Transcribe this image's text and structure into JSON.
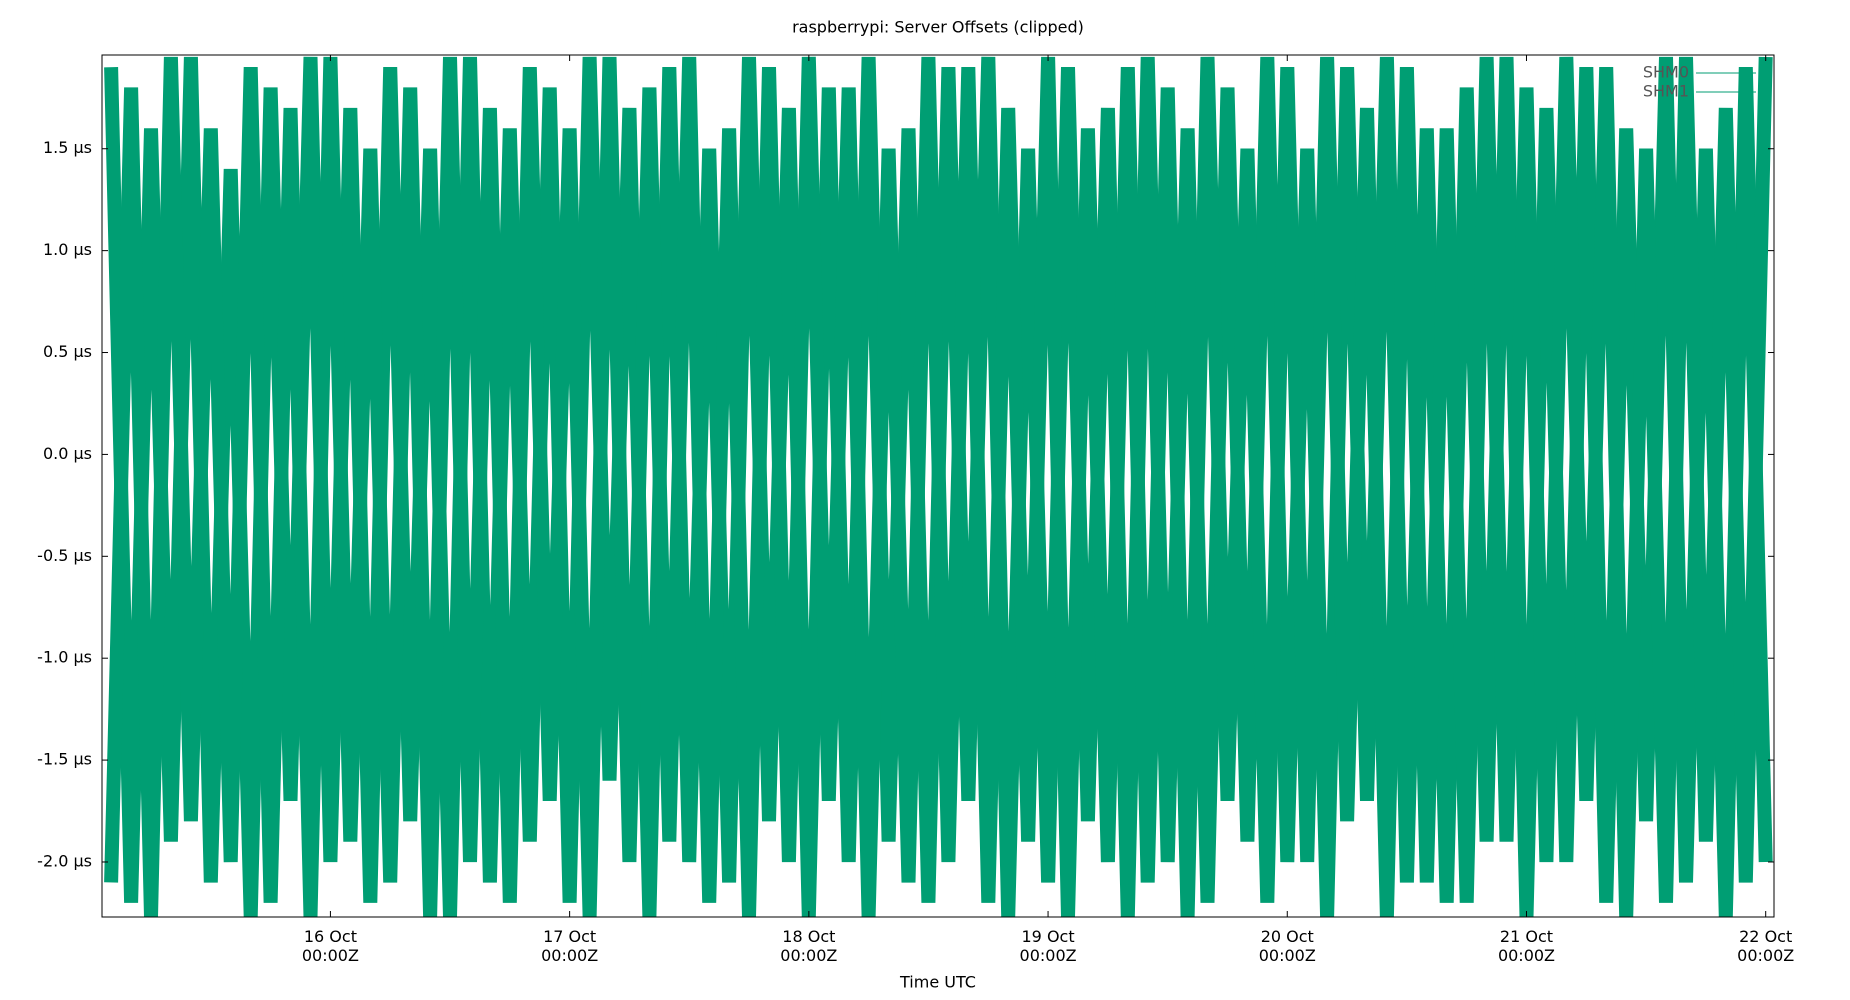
{
  "chart_data": {
    "type": "line",
    "title": "raspberrypi: Server Offsets (clipped)",
    "x_label": "Time UTC",
    "x": [
      "15 Oct 02:00Z",
      "15 Oct 04:00Z",
      "15 Oct 06:00Z",
      "15 Oct 08:00Z",
      "15 Oct 10:00Z",
      "15 Oct 12:00Z",
      "15 Oct 14:00Z",
      "15 Oct 16:00Z",
      "15 Oct 18:00Z",
      "15 Oct 20:00Z",
      "15 Oct 22:00Z",
      "16 Oct 00:00Z",
      "16 Oct 02:00Z",
      "16 Oct 04:00Z",
      "16 Oct 06:00Z",
      "16 Oct 08:00Z",
      "16 Oct 10:00Z",
      "16 Oct 12:00Z",
      "16 Oct 14:00Z",
      "16 Oct 16:00Z",
      "16 Oct 18:00Z",
      "16 Oct 20:00Z",
      "16 Oct 22:00Z",
      "17 Oct 00:00Z",
      "17 Oct 02:00Z",
      "17 Oct 04:00Z",
      "17 Oct 06:00Z",
      "17 Oct 08:00Z",
      "17 Oct 10:00Z",
      "17 Oct 12:00Z",
      "17 Oct 14:00Z",
      "17 Oct 16:00Z",
      "17 Oct 18:00Z",
      "17 Oct 20:00Z",
      "17 Oct 22:00Z",
      "18 Oct 00:00Z",
      "18 Oct 02:00Z",
      "18 Oct 04:00Z",
      "18 Oct 06:00Z",
      "18 Oct 08:00Z",
      "18 Oct 10:00Z",
      "18 Oct 12:00Z",
      "18 Oct 14:00Z",
      "18 Oct 16:00Z",
      "18 Oct 18:00Z",
      "18 Oct 20:00Z",
      "18 Oct 22:00Z",
      "19 Oct 00:00Z",
      "19 Oct 02:00Z",
      "19 Oct 04:00Z",
      "19 Oct 06:00Z",
      "19 Oct 08:00Z",
      "19 Oct 10:00Z",
      "19 Oct 12:00Z",
      "19 Oct 14:00Z",
      "19 Oct 16:00Z",
      "19 Oct 18:00Z",
      "19 Oct 20:00Z",
      "19 Oct 22:00Z",
      "20 Oct 00:00Z",
      "20 Oct 02:00Z",
      "20 Oct 04:00Z",
      "20 Oct 06:00Z",
      "20 Oct 08:00Z",
      "20 Oct 10:00Z",
      "20 Oct 12:00Z",
      "20 Oct 14:00Z",
      "20 Oct 16:00Z",
      "20 Oct 18:00Z",
      "20 Oct 20:00Z",
      "20 Oct 22:00Z",
      "21 Oct 00:00Z",
      "21 Oct 02:00Z",
      "21 Oct 04:00Z",
      "21 Oct 06:00Z",
      "21 Oct 08:00Z",
      "21 Oct 10:00Z",
      "21 Oct 12:00Z",
      "21 Oct 14:00Z",
      "21 Oct 16:00Z",
      "21 Oct 18:00Z",
      "21 Oct 20:00Z",
      "21 Oct 22:00Z",
      "22 Oct 00:00Z"
    ],
    "series": [
      {
        "name": "SHM0",
        "color": "#009e73",
        "values": [
          1.9,
          -2.2,
          1.6,
          -1.9,
          1.95,
          -2.1,
          1.4,
          -2.27,
          1.8,
          -1.7,
          1.95,
          -2.0,
          1.7,
          -2.2,
          1.9,
          -1.8,
          1.5,
          -2.27,
          1.95,
          -2.1,
          1.6,
          -1.9,
          1.8,
          -2.2,
          1.95,
          -1.6,
          1.7,
          -2.27,
          1.9,
          -2.0,
          1.5,
          -2.1,
          1.95,
          -1.8,
          1.7,
          -2.27,
          1.8,
          -2.0,
          1.95,
          -1.9,
          1.6,
          -2.2,
          1.9,
          -1.7,
          1.95,
          -2.27,
          1.5,
          -2.1,
          1.9,
          -1.8,
          1.7,
          -2.27,
          1.95,
          -2.0,
          1.6,
          -2.2,
          1.8,
          -1.9,
          1.95,
          -2.0,
          1.5,
          -2.27,
          1.9,
          -1.7,
          1.95,
          -2.1,
          1.6,
          -2.2,
          1.8,
          -1.9,
          1.95,
          -2.27,
          1.7,
          -2.0,
          1.9,
          -2.2,
          1.6,
          -1.8,
          1.95,
          -2.1,
          1.5,
          -2.27,
          1.9,
          -2.0
        ]
      },
      {
        "name": "SHM1",
        "color": "#009e73",
        "values": [
          -2.1,
          1.8,
          -2.27,
          1.95,
          -1.8,
          1.6,
          -2.0,
          1.9,
          -2.2,
          1.7,
          -2.27,
          1.95,
          -1.9,
          1.5,
          -2.1,
          1.8,
          -2.27,
          1.95,
          -2.0,
          1.7,
          -2.2,
          1.9,
          -1.7,
          1.6,
          -2.27,
          1.95,
          -2.0,
          1.8,
          -1.9,
          1.95,
          -2.2,
          1.6,
          -2.27,
          1.9,
          -2.0,
          1.95,
          -1.7,
          1.8,
          -2.27,
          1.5,
          -2.1,
          1.95,
          -2.0,
          1.9,
          -2.2,
          1.7,
          -1.9,
          1.95,
          -2.27,
          1.6,
          -2.0,
          1.9,
          -2.1,
          1.8,
          -2.27,
          1.95,
          -1.7,
          1.5,
          -2.2,
          1.9,
          -2.0,
          1.95,
          -1.8,
          1.7,
          -2.27,
          1.9,
          -2.1,
          1.6,
          -2.2,
          1.95,
          -1.9,
          1.8,
          -2.0,
          1.95,
          -1.7,
          1.9,
          -2.27,
          1.5,
          -2.2,
          1.95,
          -1.9,
          1.7,
          -2.1,
          1.95
        ]
      }
    ],
    "xlim": [
      "15 Oct 01:05Z",
      "22 Oct 00:50Z"
    ],
    "xticks": [
      {
        "value": "16 Oct 00:00Z",
        "label": "16 Oct\n00:00Z"
      },
      {
        "value": "17 Oct 00:00Z",
        "label": "17 Oct\n00:00Z"
      },
      {
        "value": "18 Oct 00:00Z",
        "label": "18 Oct\n00:00Z"
      },
      {
        "value": "19 Oct 00:00Z",
        "label": "19 Oct\n00:00Z"
      },
      {
        "value": "20 Oct 00:00Z",
        "label": "20 Oct\n00:00Z"
      },
      {
        "value": "21 Oct 00:00Z",
        "label": "21 Oct\n00:00Z"
      },
      {
        "value": "22 Oct 00:00Z",
        "label": "22 Oct\n00:00Z"
      }
    ],
    "ylim": [
      -2.27,
      1.96
    ],
    "yticks": [
      {
        "value": -2.0,
        "label": "-2.0 μs"
      },
      {
        "value": -1.5,
        "label": "-1.5 μs"
      },
      {
        "value": -1.0,
        "label": "-1.0 μs"
      },
      {
        "value": -0.5,
        "label": "-0.5 μs"
      },
      {
        "value": 0.0,
        "label": "0.0 μs"
      },
      {
        "value": 0.5,
        "label": "0.5 μs"
      },
      {
        "value": 1.0,
        "label": "1.0 μs"
      },
      {
        "value": 1.5,
        "label": "1.5 μs"
      }
    ],
    "legend": "upper right"
  }
}
